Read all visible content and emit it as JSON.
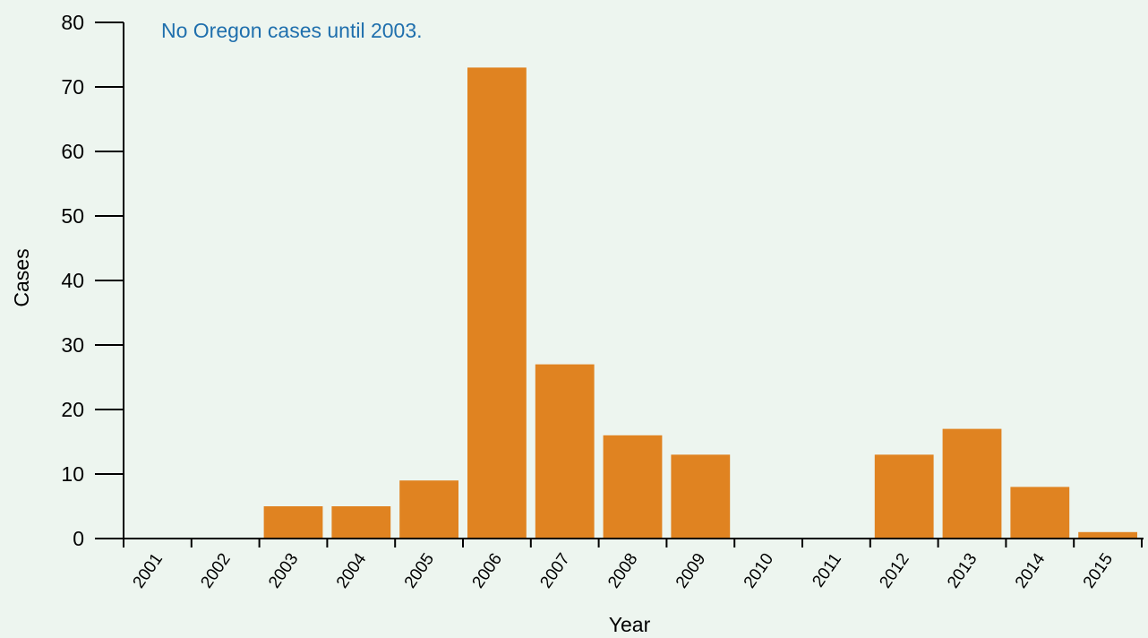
{
  "chart_data": {
    "type": "bar",
    "categories": [
      "2001",
      "2002",
      "2003",
      "2004",
      "2005",
      "2006",
      "2007",
      "2008",
      "2009",
      "2010",
      "2011",
      "2012",
      "2013",
      "2014",
      "2015"
    ],
    "values": [
      0,
      0,
      5,
      5,
      9,
      73,
      27,
      16,
      13,
      0,
      0,
      13,
      17,
      8,
      1
    ],
    "xlabel": "Year",
    "ylabel": "Cases",
    "ylim": [
      0,
      80
    ],
    "yticks": [
      0,
      10,
      20,
      30,
      40,
      50,
      60,
      70,
      80
    ],
    "annotation": "No Oregon cases until 2003.",
    "grid": false,
    "legend": "none"
  },
  "colors": {
    "bar": "#e08321",
    "annotation": "#1f6fad",
    "axis": "#000000",
    "background": "#edf5ef"
  }
}
